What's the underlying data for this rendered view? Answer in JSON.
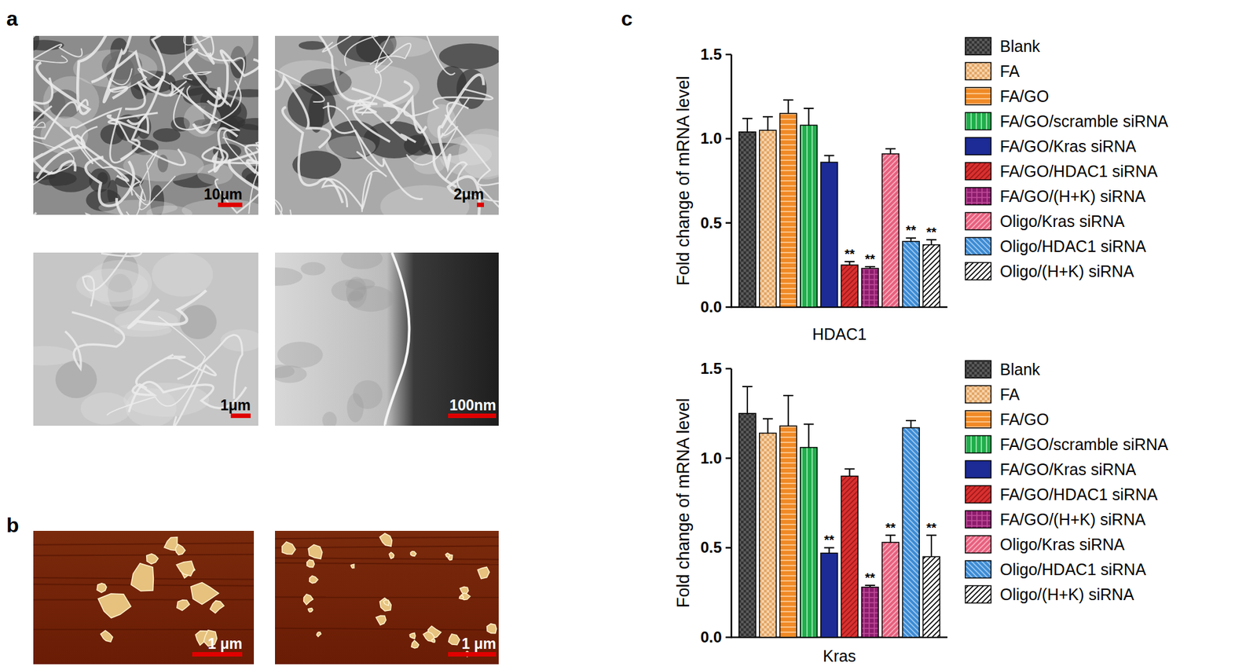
{
  "panels": [
    {
      "label": "a",
      "images": [
        {
          "scale_bar": "10μm"
        },
        {
          "scale_bar": "2μm"
        },
        {
          "scale_bar": "1μm"
        },
        {
          "scale_bar": "100nm"
        }
      ]
    },
    {
      "label": "b",
      "images": [
        {
          "scale_bar": "1 μm"
        },
        {
          "scale_bar": "1 μm"
        }
      ]
    },
    {
      "label": "c"
    }
  ],
  "chart_data": [
    {
      "type": "bar",
      "y_label": "Fold change of mRNA level",
      "categories": [
        "HDAC1"
      ],
      "ylim": [
        0,
        1.5
      ],
      "yticks": [
        {
          "value": 0,
          "label": "0.0"
        },
        {
          "value": 0.5,
          "label": "0.5"
        },
        {
          "value": 1,
          "label": "1.0"
        },
        {
          "value": 1.5,
          "label": "1.5"
        }
      ],
      "grid": false,
      "legend": "right",
      "series": [
        {
          "name": "Blank",
          "color": "#5a5a5a",
          "values": [
            1.04
          ],
          "errors": [
            0.08
          ],
          "significance": [
            null
          ]
        },
        {
          "name": "FA",
          "color": "#f6d2a8",
          "values": [
            1.05
          ],
          "errors": [
            0.08
          ],
          "significance": [
            null
          ]
        },
        {
          "name": "FA/GO",
          "color": "#f08a26",
          "values": [
            1.15
          ],
          "errors": [
            0.08
          ],
          "significance": [
            null
          ]
        },
        {
          "name": "FA/GO/scramble siRNA",
          "color": "#1fae4b",
          "values": [
            1.08
          ],
          "errors": [
            0.1
          ],
          "significance": [
            null
          ]
        },
        {
          "name": "FA/GO/Kras siRNA",
          "color": "#1c2b95",
          "values": [
            0.86
          ],
          "errors": [
            0.04
          ],
          "significance": [
            null
          ]
        },
        {
          "name": "FA/GO/HDAC1 siRNA",
          "color": "#d93030",
          "values": [
            0.25
          ],
          "errors": [
            0.02
          ],
          "significance": [
            "**"
          ]
        },
        {
          "name": "FA/GO/(H+K) siRNA",
          "color": "#8c1c6c",
          "values": [
            0.23
          ],
          "errors": [
            0.01
          ],
          "significance": [
            "**"
          ]
        },
        {
          "name": "Oligo/Kras siRNA",
          "color": "#e8607e",
          "values": [
            0.91
          ],
          "errors": [
            0.03
          ],
          "significance": [
            null
          ]
        },
        {
          "name": "Oligo/HDAC1 siRNA",
          "color": "#3d8bd4",
          "values": [
            0.39
          ],
          "errors": [
            0.02
          ],
          "significance": [
            "**"
          ]
        },
        {
          "name": "Oligo/(H+K) siRNA",
          "color": "#ffffff",
          "values": [
            0.37
          ],
          "errors": [
            0.03
          ],
          "significance": [
            "**"
          ]
        }
      ]
    },
    {
      "type": "bar",
      "y_label": "Fold change of mRNA level",
      "categories": [
        "Kras"
      ],
      "ylim": [
        0,
        1.5
      ],
      "yticks": [
        {
          "value": 0,
          "label": "0.0"
        },
        {
          "value": 0.5,
          "label": "0.5"
        },
        {
          "value": 1,
          "label": "1.0"
        },
        {
          "value": 1.5,
          "label": "1.5"
        }
      ],
      "grid": false,
      "legend": "right",
      "series": [
        {
          "name": "Blank",
          "color": "#5a5a5a",
          "values": [
            1.25
          ],
          "errors": [
            0.15
          ],
          "significance": [
            null
          ]
        },
        {
          "name": "FA",
          "color": "#f6d2a8",
          "values": [
            1.14
          ],
          "errors": [
            0.08
          ],
          "significance": [
            null
          ]
        },
        {
          "name": "FA/GO",
          "color": "#f08a26",
          "values": [
            1.18
          ],
          "errors": [
            0.17
          ],
          "significance": [
            null
          ]
        },
        {
          "name": "FA/GO/scramble siRNA",
          "color": "#1fae4b",
          "values": [
            1.06
          ],
          "errors": [
            0.13
          ],
          "significance": [
            null
          ]
        },
        {
          "name": "FA/GO/Kras siRNA",
          "color": "#1c2b95",
          "values": [
            0.47
          ],
          "errors": [
            0.03
          ],
          "significance": [
            "**"
          ]
        },
        {
          "name": "FA/GO/HDAC1 siRNA",
          "color": "#d93030",
          "values": [
            0.9
          ],
          "errors": [
            0.04
          ],
          "significance": [
            null
          ]
        },
        {
          "name": "FA/GO/(H+K) siRNA",
          "color": "#8c1c6c",
          "values": [
            0.28
          ],
          "errors": [
            0.01
          ],
          "significance": [
            "**"
          ]
        },
        {
          "name": "Oligo/Kras siRNA",
          "color": "#e8607e",
          "values": [
            0.53
          ],
          "errors": [
            0.04
          ],
          "significance": [
            "**"
          ]
        },
        {
          "name": "Oligo/HDAC1 siRNA",
          "color": "#3d8bd4",
          "values": [
            1.17
          ],
          "errors": [
            0.04
          ],
          "significance": [
            null
          ]
        },
        {
          "name": "Oligo/(H+K) siRNA",
          "color": "#ffffff",
          "values": [
            0.45
          ],
          "errors": [
            0.12
          ],
          "significance": [
            "**"
          ]
        }
      ]
    }
  ]
}
